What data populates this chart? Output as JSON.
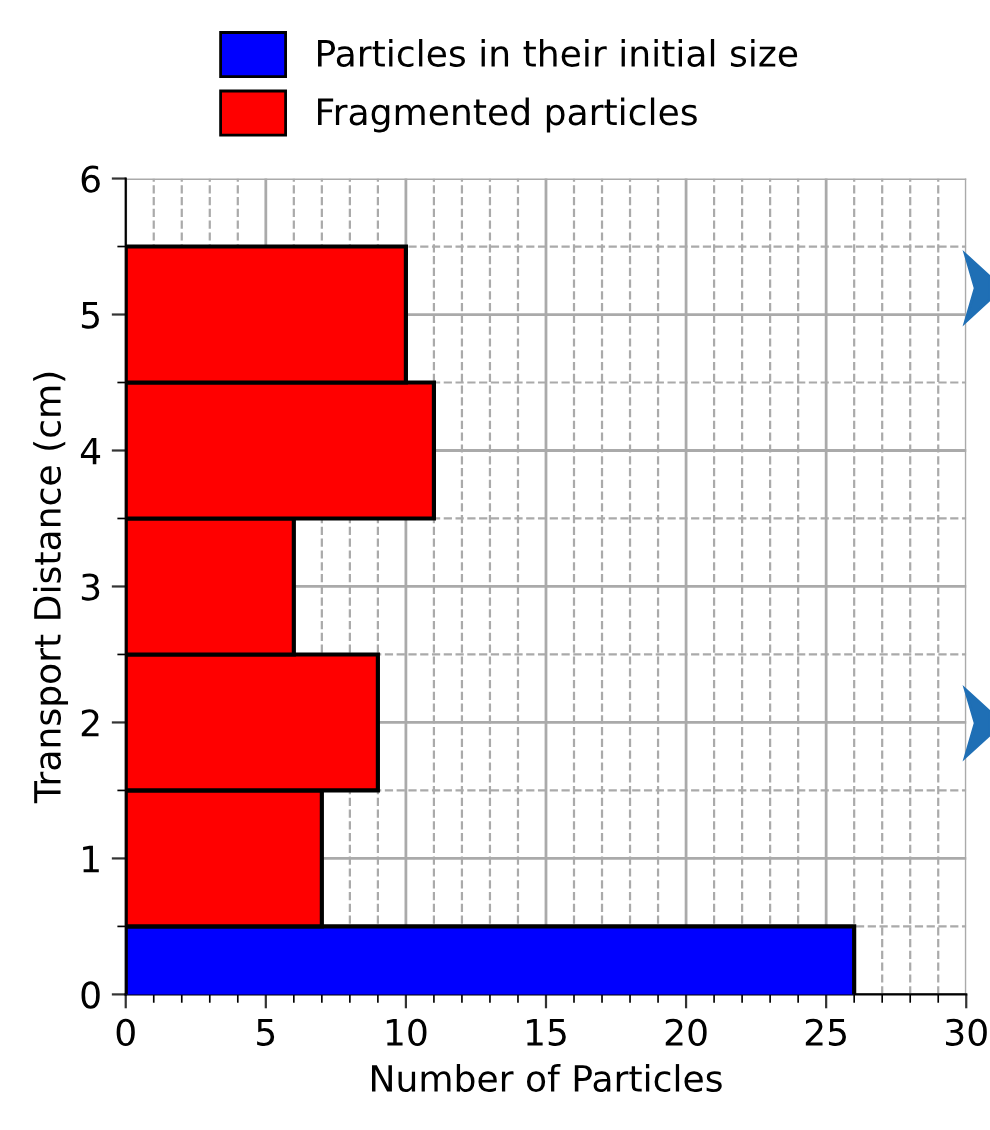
{
  "chart_data": {
    "type": "bar",
    "orientation": "horizontal",
    "xlabel": "Number of Particles",
    "ylabel": "Transport Distance (cm)",
    "series": [
      {
        "name": "Particles in their initial size",
        "color": "#0000ff",
        "x": [
          0
        ],
        "values": [
          26
        ]
      },
      {
        "name": "Fragmented particles",
        "color": "#ff0000",
        "x": [
          1,
          2,
          3,
          4,
          5
        ],
        "values": [
          7,
          9,
          6,
          11,
          10
        ]
      }
    ],
    "xlim": [
      0,
      30
    ],
    "xticks": [
      0,
      5,
      10,
      15,
      20,
      25,
      30
    ],
    "ylim": [
      0,
      6
    ],
    "yticks": [
      0,
      1,
      2,
      3,
      4,
      5,
      6
    ],
    "grid": true,
    "legend": "top left"
  }
}
